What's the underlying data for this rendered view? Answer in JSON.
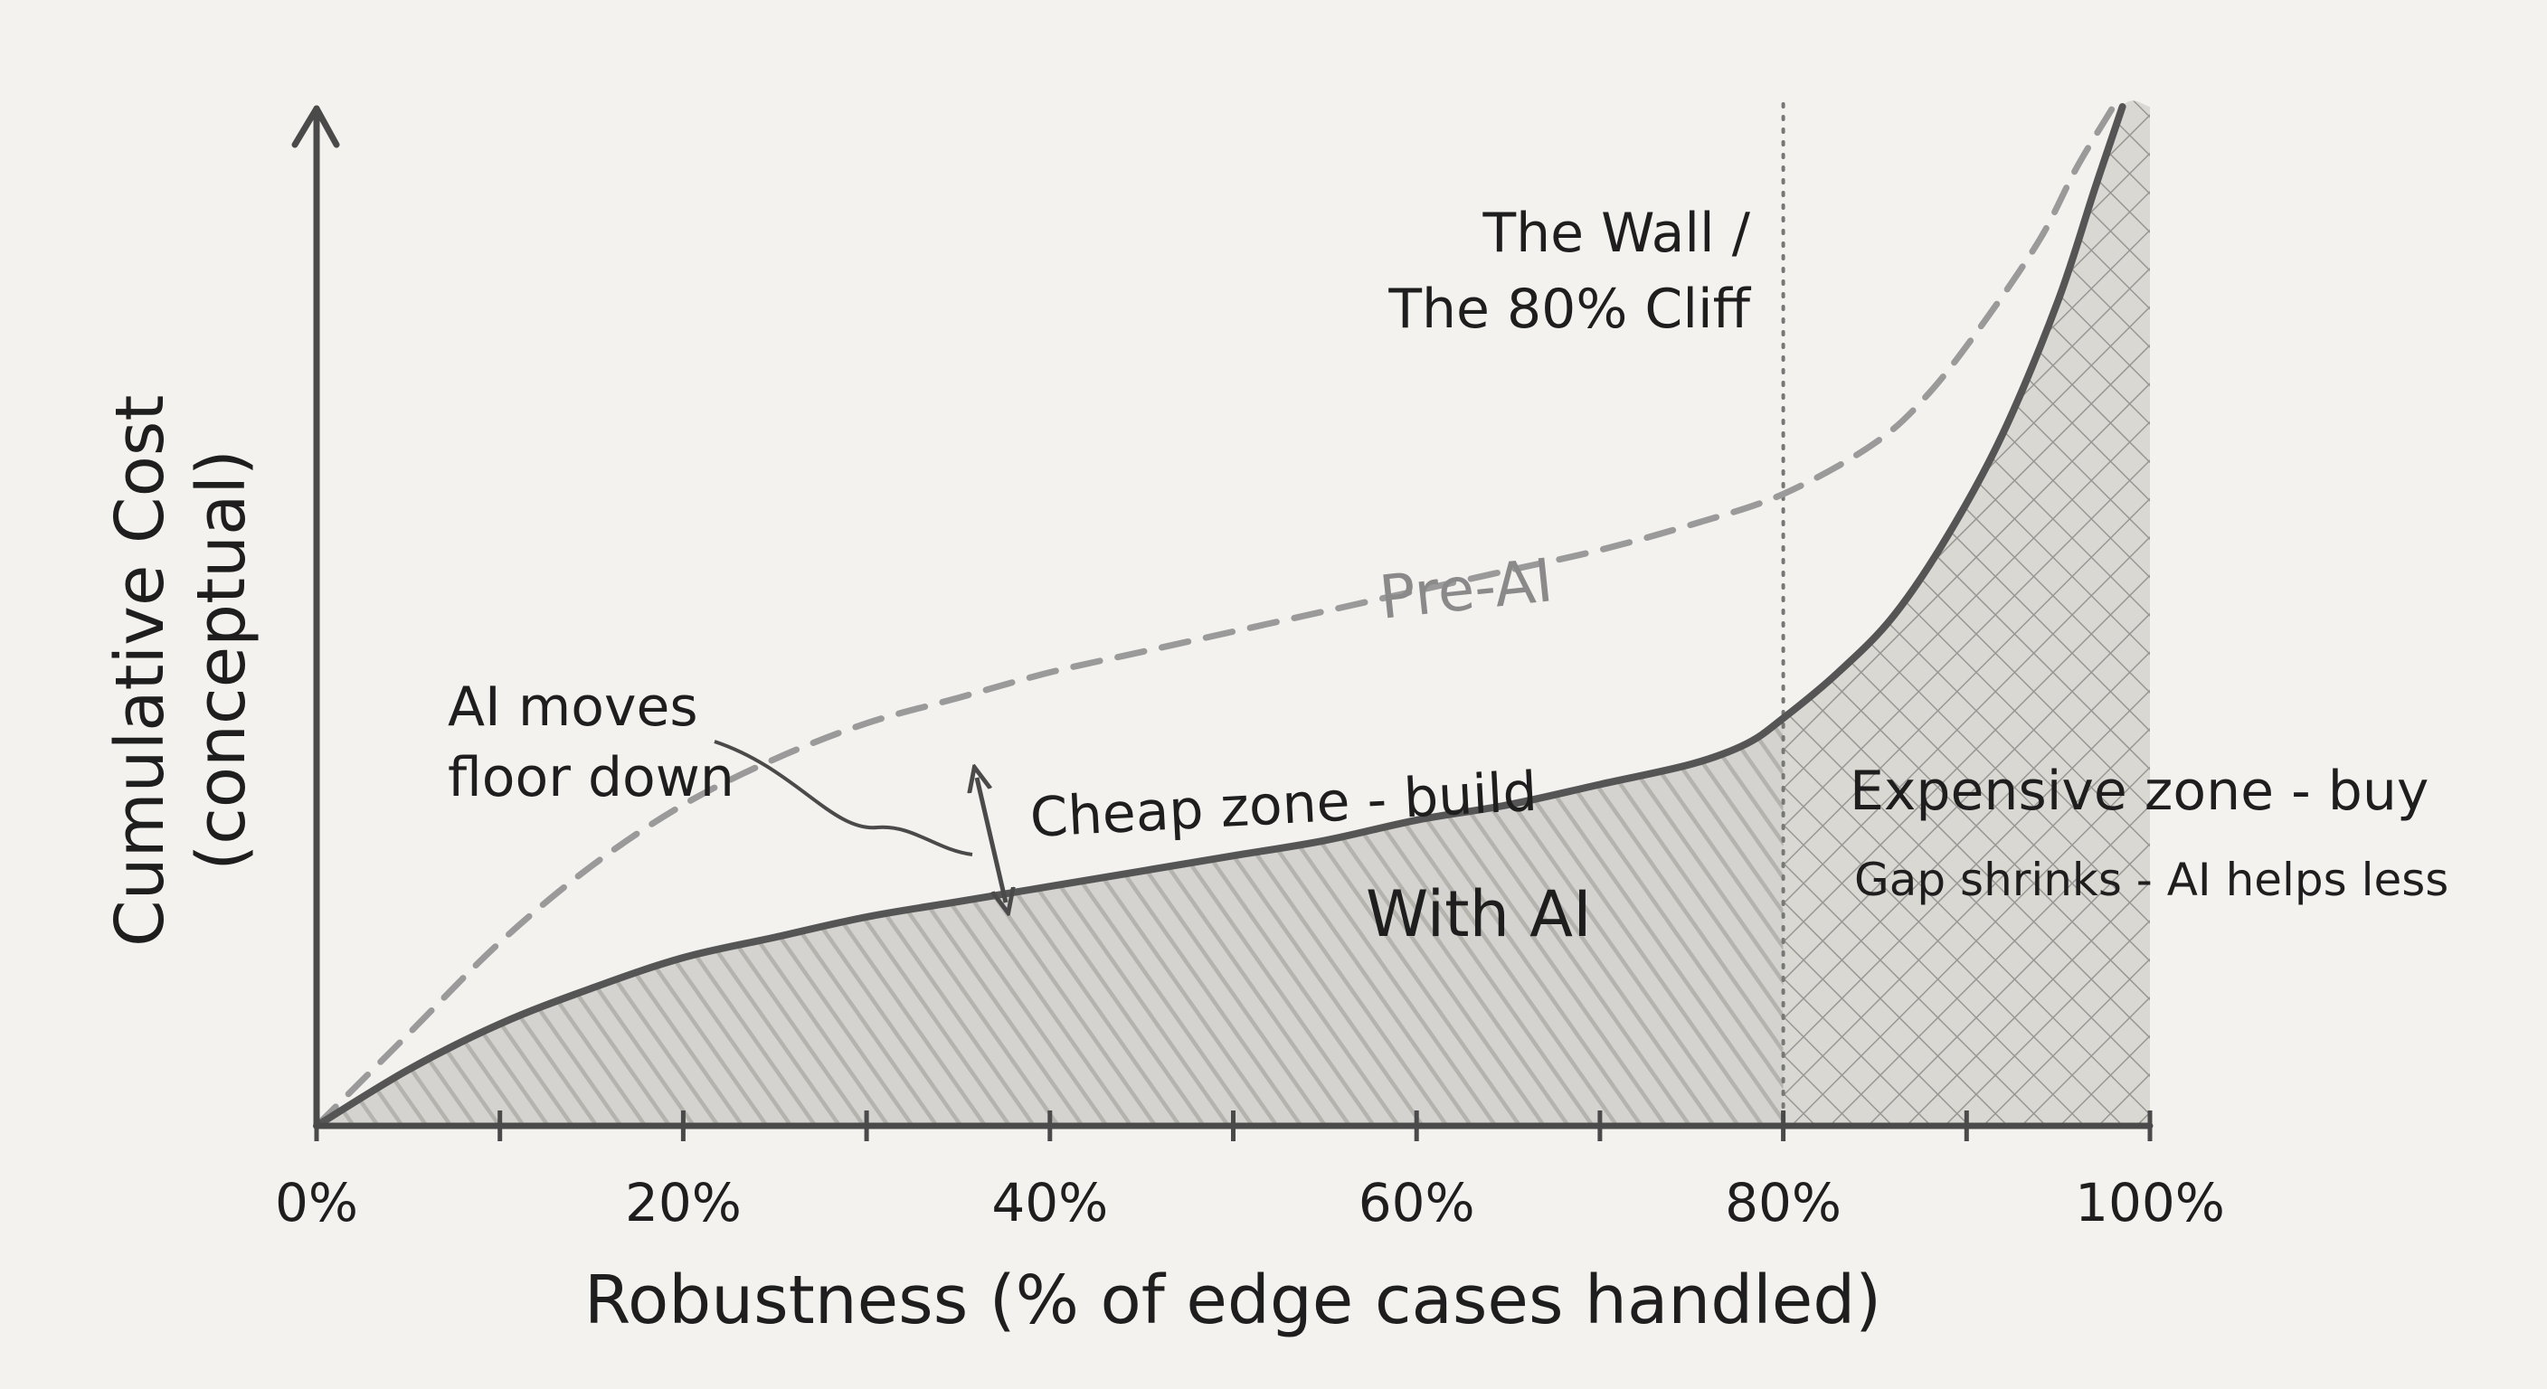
{
  "chart_data": {
    "type": "line",
    "xlabel": "Robustness (% of edge cases handled)",
    "ylabel": "Cumulative Cost (conceptual)",
    "xlim": [
      0,
      100
    ],
    "ylim": [
      0,
      100
    ],
    "x_ticks": [
      0,
      10,
      20,
      30,
      40,
      50,
      60,
      70,
      80,
      90,
      100
    ],
    "x_tick_labels": [
      "0%",
      "20%",
      "40%",
      "60%",
      "80%",
      "100%"
    ],
    "x_tick_label_values": [
      0,
      20,
      40,
      60,
      80,
      100
    ],
    "series": [
      {
        "name": "Pre-AI",
        "style": "dashed",
        "color": "#9a9a9a",
        "x": [
          0,
          5,
          10,
          15,
          20,
          25,
          30,
          35,
          40,
          45,
          50,
          55,
          60,
          65,
          70,
          75,
          80,
          85,
          88,
          91,
          94,
          96,
          98
        ],
        "y": [
          0,
          9,
          18,
          25.5,
          31.5,
          36,
          39.5,
          42,
          44.5,
          46.5,
          48.5,
          50.5,
          52.5,
          54.5,
          56.5,
          59,
          62,
          67,
          72,
          79,
          87,
          94,
          100
        ]
      },
      {
        "name": "With AI",
        "style": "solid",
        "color": "#555555",
        "x": [
          0,
          5,
          10,
          15,
          20,
          25,
          30,
          35,
          40,
          45,
          50,
          55,
          60,
          65,
          70,
          75,
          78,
          80,
          83,
          86,
          89,
          92,
          95,
          97,
          98.5
        ],
        "y": [
          0,
          5.5,
          10,
          13.5,
          16.5,
          18.5,
          20.5,
          22,
          23.5,
          25,
          26.5,
          28,
          30,
          31.5,
          33.5,
          35.5,
          37.5,
          40,
          44.5,
          50,
          58,
          68,
          81,
          92,
          100
        ]
      }
    ],
    "wall_x": 80,
    "annotations": {
      "wall_line1": "The Wall /",
      "wall_line2": "The 80% Cliff",
      "floor_line1": "AI moves",
      "floor_line2": "floor down",
      "cheap_zone": "Cheap zone - build",
      "expensive_zone": "Expensive zone - buy",
      "gap_note": "Gap shrinks - AI helps less"
    },
    "colors": {
      "background": "#f3f2ee",
      "axis": "#4a4a4a",
      "pre_ai_line": "#9a9a9a",
      "with_ai_line": "#555555",
      "shade": "#b9b8b3",
      "hatch": "#8c8c88"
    },
    "grid": false
  }
}
